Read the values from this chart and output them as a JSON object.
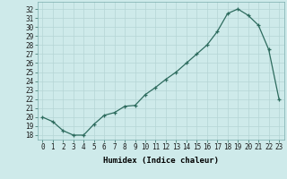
{
  "x": [
    0,
    1,
    2,
    3,
    4,
    5,
    6,
    7,
    8,
    9,
    10,
    11,
    12,
    13,
    14,
    15,
    16,
    17,
    18,
    19,
    20,
    21,
    22,
    23
  ],
  "y": [
    20.0,
    19.5,
    18.5,
    18.0,
    18.0,
    19.2,
    20.2,
    20.5,
    21.2,
    21.3,
    22.5,
    23.3,
    24.2,
    25.0,
    26.0,
    27.0,
    28.0,
    29.5,
    31.5,
    32.0,
    31.3,
    30.2,
    27.5,
    22.0
  ],
  "xlabel": "Humidex (Indice chaleur)",
  "ylabel": "",
  "ylim": [
    17.5,
    32.8
  ],
  "xlim": [
    -0.5,
    23.5
  ],
  "yticks": [
    18,
    19,
    20,
    21,
    22,
    23,
    24,
    25,
    26,
    27,
    28,
    29,
    30,
    31,
    32
  ],
  "xticks": [
    0,
    1,
    2,
    3,
    4,
    5,
    6,
    7,
    8,
    9,
    10,
    11,
    12,
    13,
    14,
    15,
    16,
    17,
    18,
    19,
    20,
    21,
    22,
    23
  ],
  "line_color": "#2d6b5e",
  "marker": "+",
  "bg_color": "#ceeaea",
  "grid_color": "#b5d5d5",
  "label_fontsize": 6.5,
  "tick_fontsize": 5.5,
  "markersize": 3.5,
  "linewidth": 0.9
}
